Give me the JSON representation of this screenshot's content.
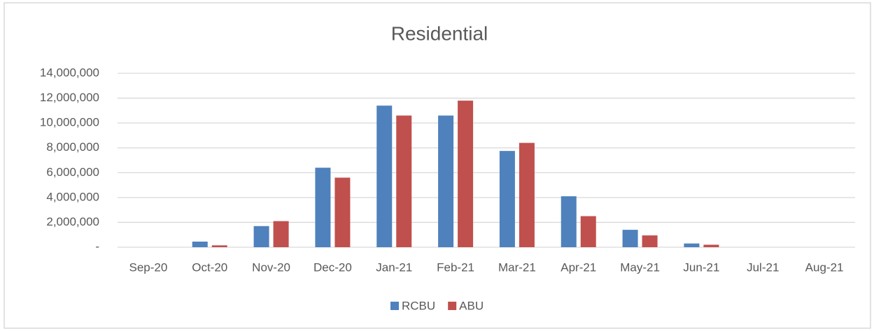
{
  "chart_data": {
    "type": "bar",
    "title": "Residential",
    "categories": [
      "Sep-20",
      "Oct-20",
      "Nov-20",
      "Dec-20",
      "Jan-21",
      "Feb-21",
      "Mar-21",
      "Apr-21",
      "May-21",
      "Jun-21",
      "Jul-21",
      "Aug-21"
    ],
    "series": [
      {
        "name": "RCBU",
        "color": "#4f81bd",
        "values": [
          0,
          450000,
          1700000,
          6400000,
          11400000,
          10600000,
          7750000,
          4100000,
          1400000,
          300000,
          0,
          0
        ]
      },
      {
        "name": "ABU",
        "color": "#c0504d",
        "values": [
          0,
          150000,
          2100000,
          5600000,
          10600000,
          11800000,
          8400000,
          2500000,
          950000,
          200000,
          0,
          0
        ]
      }
    ],
    "ylim": [
      0,
      14000000
    ],
    "yticks": [
      {
        "value": 0,
        "label": "-"
      },
      {
        "value": 2000000,
        "label": "2,000,000"
      },
      {
        "value": 4000000,
        "label": "4,000,000"
      },
      {
        "value": 6000000,
        "label": "6,000,000"
      },
      {
        "value": 8000000,
        "label": "8,000,000"
      },
      {
        "value": 10000000,
        "label": "10,000,000"
      },
      {
        "value": 12000000,
        "label": "12,000,000"
      },
      {
        "value": 14000000,
        "label": "14,000,000"
      }
    ],
    "grid": true,
    "legend": "bottom"
  }
}
